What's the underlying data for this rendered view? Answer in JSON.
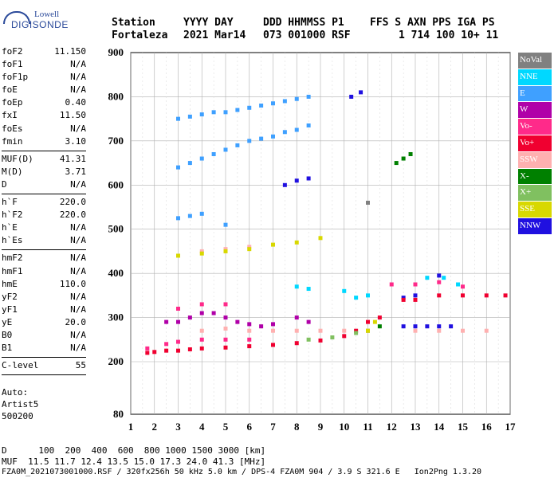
{
  "logo": {
    "line1": "Lowell",
    "line2": "DIGISONDE"
  },
  "header": {
    "row1": [
      "Station",
      "YYYY DAY",
      "DDD HHMMSS P1",
      "FFS S AXN PPS IGA PS"
    ],
    "row2": [
      "Fortaleza",
      "2021 Mar14",
      "073 001000 RSF",
      "1 714 100 10+ 11"
    ]
  },
  "params": {
    "group1": [
      {
        "k": "foF2",
        "v": "11.150"
      },
      {
        "k": "foF1",
        "v": "N/A"
      },
      {
        "k": "foF1p",
        "v": "N/A"
      },
      {
        "k": "foE",
        "v": "N/A"
      },
      {
        "k": "foEp",
        "v": "0.40"
      },
      {
        "k": "fxI",
        "v": "11.50"
      },
      {
        "k": "foEs",
        "v": "N/A"
      },
      {
        "k": "fmin",
        "v": "3.10"
      }
    ],
    "group2": [
      {
        "k": "MUF(D)",
        "v": "41.31"
      },
      {
        "k": "M(D)",
        "v": "3.71"
      },
      {
        "k": "D",
        "v": "N/A"
      }
    ],
    "group3": [
      {
        "k": "h`F",
        "v": "220.0"
      },
      {
        "k": "h`F2",
        "v": "220.0"
      },
      {
        "k": "h`E",
        "v": "N/A"
      },
      {
        "k": "h`Es",
        "v": "N/A"
      }
    ],
    "group4": [
      {
        "k": "hmF2",
        "v": "N/A"
      },
      {
        "k": "hmF1",
        "v": "N/A"
      },
      {
        "k": "hmE",
        "v": "110.0"
      },
      {
        "k": "yF2",
        "v": "N/A"
      },
      {
        "k": "yF1",
        "v": "N/A"
      },
      {
        "k": "yE",
        "v": "20.0"
      },
      {
        "k": "B0",
        "v": "N/A"
      },
      {
        "k": "B1",
        "v": "N/A"
      }
    ],
    "group5": [
      {
        "k": "C-level",
        "v": "55"
      }
    ]
  },
  "auto": {
    "line1": "Auto:",
    "line2": "Artist5",
    "line3": "500200"
  },
  "footer": {
    "d_row": "D      100  200  400  600  800 1000 1500 3000 [km]",
    "muf_row": "MUF  11.5 11.7 12.4 13.5 15.0 17.3 24.0 41.3 [MHz]",
    "file_row": "FZA0M_2021073001000.RSF / 320fx256h 50 kHz 5.0 km / DPS-4 FZA0M 904 / 3.9 S 321.6 E   Ion2Png 1.3.20"
  },
  "chart_data": {
    "type": "scatter",
    "xlabel": "",
    "ylabel": "",
    "xlim": [
      1,
      17
    ],
    "ylim": [
      80,
      900
    ],
    "xticks": [
      1,
      2,
      3,
      4,
      5,
      6,
      7,
      8,
      9,
      10,
      11,
      12,
      13,
      14,
      15,
      16,
      17
    ],
    "yticks": [
      80,
      200,
      300,
      400,
      500,
      600,
      700,
      800,
      900
    ],
    "grid": true,
    "legend_position": "right",
    "legend": [
      {
        "name": "NoVal",
        "color": "#808080"
      },
      {
        "name": "NNE",
        "color": "#00d8ff"
      },
      {
        "name": "E",
        "color": "#3fa0ff"
      },
      {
        "name": "W",
        "color": "#b000a8"
      },
      {
        "name": "Vo-",
        "color": "#ff2a8a"
      },
      {
        "name": "Vo+",
        "color": "#f00030"
      },
      {
        "name": "SSW",
        "color": "#ffb0b0"
      },
      {
        "name": "X-",
        "color": "#008000"
      },
      {
        "name": "X+",
        "color": "#80c060"
      },
      {
        "name": "SSE",
        "color": "#d8d800"
      },
      {
        "name": "NNW",
        "color": "#2010e0"
      }
    ],
    "series": [
      {
        "name": "E",
        "points": [
          [
            3.0,
            640
          ],
          [
            3.5,
            650
          ],
          [
            4.0,
            660
          ],
          [
            4.5,
            670
          ],
          [
            5.0,
            680
          ],
          [
            5.5,
            690
          ],
          [
            6.0,
            700
          ],
          [
            6.5,
            705
          ],
          [
            7.0,
            710
          ],
          [
            7.5,
            720
          ],
          [
            8.0,
            725
          ],
          [
            8.5,
            735
          ],
          [
            3.0,
            750
          ],
          [
            3.5,
            755
          ],
          [
            4.0,
            760
          ],
          [
            4.5,
            765
          ],
          [
            5.0,
            765
          ],
          [
            5.5,
            770
          ],
          [
            6.0,
            775
          ],
          [
            6.5,
            780
          ],
          [
            7.0,
            785
          ],
          [
            7.5,
            790
          ],
          [
            8.0,
            795
          ],
          [
            8.5,
            800
          ],
          [
            3.0,
            525
          ],
          [
            3.5,
            530
          ],
          [
            4.0,
            535
          ],
          [
            5.0,
            510
          ]
        ]
      },
      {
        "name": "NNE",
        "points": [
          [
            8.0,
            370
          ],
          [
            8.5,
            365
          ],
          [
            10.0,
            360
          ],
          [
            10.5,
            345
          ],
          [
            11.0,
            350
          ],
          [
            13.5,
            390
          ],
          [
            14.2,
            390
          ],
          [
            14.8,
            375
          ]
        ]
      },
      {
        "name": "W",
        "points": [
          [
            2.5,
            290
          ],
          [
            3.0,
            290
          ],
          [
            3.5,
            300
          ],
          [
            4.0,
            310
          ],
          [
            4.5,
            310
          ],
          [
            5.0,
            300
          ],
          [
            5.5,
            290
          ],
          [
            6.0,
            285
          ],
          [
            6.5,
            280
          ],
          [
            7.0,
            285
          ],
          [
            8.0,
            300
          ],
          [
            8.5,
            290
          ]
        ]
      },
      {
        "name": "NNW",
        "points": [
          [
            7.5,
            600
          ],
          [
            8.0,
            610
          ],
          [
            8.5,
            615
          ],
          [
            10.3,
            800
          ],
          [
            10.7,
            810
          ],
          [
            12.5,
            280
          ],
          [
            13.0,
            280
          ],
          [
            13.5,
            280
          ],
          [
            14.0,
            280
          ],
          [
            14.5,
            280
          ],
          [
            12.5,
            345
          ],
          [
            13.0,
            350
          ],
          [
            14.0,
            395
          ]
        ]
      },
      {
        "name": "X-",
        "points": [
          [
            12.2,
            650
          ],
          [
            12.5,
            660
          ],
          [
            12.8,
            670
          ],
          [
            11.0,
            270
          ],
          [
            11.5,
            280
          ]
        ]
      },
      {
        "name": "Vo+",
        "points": [
          [
            1.7,
            220
          ],
          [
            2.0,
            222
          ],
          [
            2.5,
            225
          ],
          [
            3.0,
            225
          ],
          [
            3.5,
            228
          ],
          [
            4.0,
            230
          ],
          [
            5.0,
            232
          ],
          [
            6.0,
            235
          ],
          [
            7.0,
            238
          ],
          [
            8.0,
            242
          ],
          [
            9.0,
            248
          ],
          [
            10.0,
            258
          ],
          [
            10.5,
            270
          ],
          [
            11.0,
            290
          ],
          [
            11.5,
            300
          ],
          [
            12.5,
            340
          ],
          [
            13.0,
            340
          ],
          [
            14.0,
            350
          ],
          [
            15.0,
            350
          ],
          [
            16.0,
            350
          ],
          [
            16.8,
            350
          ]
        ]
      },
      {
        "name": "Vo-",
        "points": [
          [
            1.7,
            230
          ],
          [
            2.5,
            240
          ],
          [
            3.0,
            245
          ],
          [
            4.0,
            250
          ],
          [
            5.0,
            250
          ],
          [
            6.0,
            250
          ],
          [
            3.0,
            320
          ],
          [
            4.0,
            330
          ],
          [
            5.0,
            330
          ],
          [
            12.0,
            375
          ],
          [
            13.0,
            375
          ],
          [
            14.0,
            380
          ],
          [
            15.0,
            370
          ]
        ]
      },
      {
        "name": "SSW",
        "points": [
          [
            4.0,
            270
          ],
          [
            5.0,
            275
          ],
          [
            6.0,
            270
          ],
          [
            7.0,
            270
          ],
          [
            8.0,
            270
          ],
          [
            9.0,
            270
          ],
          [
            10.0,
            270
          ],
          [
            11.0,
            270
          ],
          [
            13.0,
            270
          ],
          [
            14.0,
            270
          ],
          [
            15.0,
            270
          ],
          [
            16.0,
            270
          ],
          [
            4.0,
            450
          ],
          [
            5.0,
            455
          ],
          [
            6.0,
            460
          ]
        ]
      },
      {
        "name": "SSE",
        "points": [
          [
            3.0,
            440
          ],
          [
            4.0,
            445
          ],
          [
            5.0,
            450
          ],
          [
            6.0,
            455
          ],
          [
            7.0,
            465
          ],
          [
            8.0,
            470
          ],
          [
            9.0,
            480
          ],
          [
            11.0,
            270
          ],
          [
            11.3,
            290
          ]
        ]
      },
      {
        "name": "X+",
        "points": [
          [
            8.5,
            250
          ],
          [
            9.5,
            255
          ],
          [
            10.5,
            265
          ]
        ]
      },
      {
        "name": "NoVal",
        "points": [
          [
            11.0,
            560
          ]
        ]
      }
    ]
  }
}
